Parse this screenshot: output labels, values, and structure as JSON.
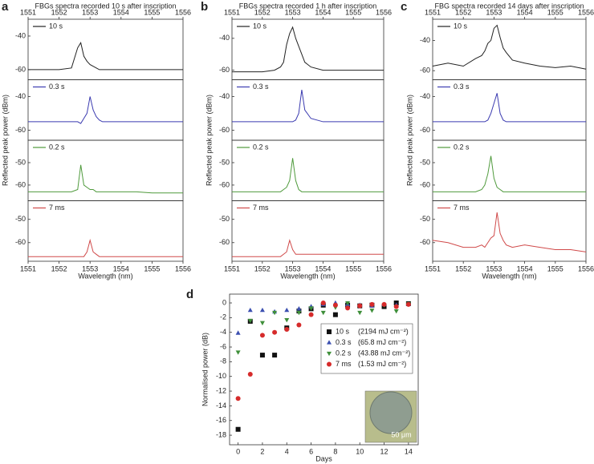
{
  "chart_data": [
    {
      "type": "line",
      "panel": "a",
      "title": "FBGs spectra recorded 10 s after inscription",
      "xlabel": "Wavelength (nm)",
      "ylabel": "Reflected peak power (dBm)",
      "xlim": [
        1551,
        1556
      ],
      "xticks": [
        1551,
        1552,
        1553,
        1554,
        1555,
        1556
      ],
      "x": [
        1551,
        1551.5,
        1552,
        1552.4,
        1552.6,
        1552.7,
        1552.8,
        1552.9,
        1553,
        1553.1,
        1553.2,
        1553.3,
        1553.4,
        1553.6,
        1554,
        1554.5,
        1555,
        1555.5,
        1556
      ],
      "subplots": [
        {
          "ylim": [
            -66,
            -30
          ],
          "yticks": [
            -60,
            -40
          ],
          "series": [
            {
              "name": "10 s",
              "color": "#222222",
              "values": [
                -60,
                -60,
                -60,
                -59,
                -47,
                -44,
                -52,
                -55,
                -57,
                -58,
                -59,
                -60,
                -60,
                -60,
                -60,
                -60,
                -60,
                -60,
                -60
              ]
            }
          ]
        },
        {
          "ylim": [
            -66,
            -30
          ],
          "yticks": [
            -60,
            -40
          ],
          "series": [
            {
              "name": "0.3 s",
              "color": "#3b3bb0",
              "values": [
                -55,
                -55,
                -55,
                -55,
                -55,
                -56,
                -53,
                -50,
                -40,
                -48,
                -52,
                -54,
                -55,
                -55,
                -55,
                -55,
                -55,
                -55,
                -55
              ]
            }
          ]
        },
        {
          "ylim": [
            -67,
            -40
          ],
          "yticks": [
            -60,
            -50
          ],
          "series": [
            {
              "name": "0.2 s",
              "color": "#4f9a3c",
              "values": [
                -63,
                -63,
                -63,
                -63,
                -62,
                -51,
                -60,
                -61,
                -62,
                -62,
                -63,
                -63,
                -63,
                -63,
                -63,
                -63,
                -63.5,
                -63.5,
                -63.5
              ]
            }
          ]
        },
        {
          "ylim": [
            -68,
            -42
          ],
          "yticks": [
            -60,
            -50
          ],
          "series": [
            {
              "name": "7 ms",
              "color": "#d04a4a",
              "values": [
                -66,
                -66,
                -66,
                -66,
                -66,
                -66,
                -66,
                -64,
                -59,
                -64,
                -65,
                -66,
                -66,
                -66,
                -66,
                -66,
                -66,
                -66,
                -66
              ]
            }
          ]
        }
      ]
    },
    {
      "type": "line",
      "panel": "b",
      "title": "FBGs spectra recorded 1 h after inscription",
      "xlabel": "Wavelength (nm)",
      "ylabel": "Reflected peak power (dBm)",
      "xlim": [
        1551,
        1556
      ],
      "xticks": [
        1551,
        1552,
        1553,
        1554,
        1555,
        1556
      ],
      "x": [
        1551,
        1551.5,
        1552,
        1552.4,
        1552.6,
        1552.7,
        1552.8,
        1552.9,
        1553,
        1553.1,
        1553.2,
        1553.3,
        1553.4,
        1553.6,
        1554,
        1554.5,
        1555,
        1555.5,
        1556
      ],
      "subplots": [
        {
          "ylim": [
            -66,
            -28
          ],
          "yticks": [
            -60,
            -40
          ],
          "series": [
            {
              "name": "10 s",
              "color": "#222222",
              "values": [
                -61,
                -61,
                -61,
                -60,
                -58,
                -55,
                -44,
                -37,
                -33,
                -40,
                -45,
                -50,
                -55,
                -58,
                -60,
                -60,
                -60,
                -60,
                -60
              ]
            }
          ]
        },
        {
          "ylim": [
            -66,
            -30
          ],
          "yticks": [
            -60,
            -40
          ],
          "series": [
            {
              "name": "0.3 s",
              "color": "#3b3bb0",
              "values": [
                -55,
                -55,
                -55,
                -55,
                -55,
                -55,
                -55,
                -55,
                -55,
                -54,
                -50,
                -36,
                -48,
                -53,
                -55,
                -55,
                -55,
                -55,
                -55
              ]
            }
          ]
        },
        {
          "ylim": [
            -67,
            -40
          ],
          "yticks": [
            -60,
            -50
          ],
          "series": [
            {
              "name": "0.2 s",
              "color": "#4f9a3c",
              "values": [
                -63,
                -63,
                -63,
                -63,
                -63,
                -62,
                -61,
                -58,
                -48,
                -58,
                -62,
                -63,
                -63,
                -63,
                -63,
                -63,
                -63,
                -63,
                -63
              ]
            }
          ]
        },
        {
          "ylim": [
            -68,
            -42
          ],
          "yticks": [
            -60,
            -50
          ],
          "series": [
            {
              "name": "7 ms",
              "color": "#d04a4a",
              "values": [
                -66,
                -66,
                -66,
                -66,
                -66,
                -65,
                -64,
                -59,
                -63,
                -65,
                -65,
                -65,
                -65,
                -65,
                -65,
                -65,
                -65,
                -65,
                -65
              ]
            }
          ]
        }
      ]
    },
    {
      "type": "line",
      "panel": "c",
      "title": "FBG spectra recorded 14 days after inscription",
      "xlabel": "Wavelength (nm)",
      "ylabel": "Reflected peak power (dBm)",
      "xlim": [
        1551,
        1556
      ],
      "xticks": [
        1551,
        1552,
        1553,
        1554,
        1555,
        1556
      ],
      "x": [
        1551,
        1551.5,
        1552,
        1552.4,
        1552.6,
        1552.7,
        1552.8,
        1552.9,
        1553,
        1553.1,
        1553.2,
        1553.3,
        1553.4,
        1553.6,
        1554,
        1554.5,
        1555,
        1555.5,
        1556
      ],
      "subplots": [
        {
          "ylim": [
            -66,
            -26
          ],
          "yticks": [
            -60,
            -40
          ],
          "series": [
            {
              "name": "10 s",
              "color": "#222222",
              "values": [
                -57,
                -55,
                -57,
                -52,
                -50,
                -47,
                -42,
                -40,
                -32,
                -30,
                -38,
                -45,
                -48,
                -53,
                -55,
                -57,
                -58,
                -57,
                -59
              ]
            }
          ]
        },
        {
          "ylim": [
            -66,
            -30
          ],
          "yticks": [
            -60,
            -40
          ],
          "series": [
            {
              "name": "0.3 s",
              "color": "#3b3bb0",
              "values": [
                -55,
                -55,
                -55,
                -55,
                -55,
                -55,
                -54,
                -50,
                -44,
                -38,
                -50,
                -54,
                -55,
                -55,
                -55,
                -55,
                -55,
                -55,
                -55
              ]
            }
          ]
        },
        {
          "ylim": [
            -67,
            -40
          ],
          "yticks": [
            -60,
            -50
          ],
          "series": [
            {
              "name": "0.2 s",
              "color": "#4f9a3c",
              "values": [
                -63,
                -63,
                -63,
                -63,
                -62,
                -60,
                -55,
                -47,
                -57,
                -61,
                -62,
                -63,
                -63,
                -63,
                -63,
                -63,
                -63,
                -63,
                -63
              ]
            }
          ]
        },
        {
          "ylim": [
            -68,
            -42
          ],
          "yticks": [
            -60,
            -50
          ],
          "series": [
            {
              "name": "7 ms",
              "color": "#d04a4a",
              "values": [
                -59,
                -60,
                -62,
                -62,
                -61,
                -62,
                -60,
                -58,
                -57,
                -47,
                -56,
                -59,
                -61,
                -62,
                -61,
                -62,
                -63,
                -63,
                -64
              ]
            }
          ]
        }
      ]
    },
    {
      "type": "scatter",
      "panel": "d",
      "xlabel": "Days",
      "ylabel": "Normalised power (dB)",
      "xlim": [
        -0.7,
        14.8
      ],
      "xticks": [
        0,
        2,
        4,
        6,
        8,
        10,
        12,
        14
      ],
      "ylim": [
        -19.3,
        1.2
      ],
      "yticks": [
        0,
        -2,
        -4,
        -6,
        -8,
        -10,
        -12,
        -14,
        -16,
        -18
      ],
      "x": [
        0,
        1,
        2,
        3,
        4,
        5,
        6,
        7,
        8,
        9,
        10,
        11,
        12,
        13,
        14
      ],
      "series": [
        {
          "name": "10 s",
          "fluence": "(2194 mJ cm⁻²)",
          "color": "#111111",
          "marker": "square",
          "values": [
            -17.2,
            -2.5,
            -7.1,
            -7.1,
            -3.4,
            -1.1,
            -0.8,
            -0.3,
            -1.6,
            -0.3,
            -0.4,
            -0.3,
            -0.5,
            0,
            -0.1
          ]
        },
        {
          "name": "0.3 s",
          "fluence": "(65.8 mJ cm⁻²)",
          "color": "#3b4fb0",
          "marker": "triangle-up",
          "values": [
            -4.1,
            -1,
            -1,
            -1.2,
            -1,
            -0.8,
            -0.5,
            -0.2,
            0,
            -0.2,
            -0.3,
            -0.4,
            -0.2,
            -0.3,
            -0.2
          ]
        },
        {
          "name": "0.2 s",
          "fluence": "(43.88 mJ cm⁻²)",
          "color": "#3f8f3a",
          "marker": "triangle-down",
          "values": [
            -6.7,
            -2.4,
            -2.7,
            -1.3,
            -2.3,
            -1.3,
            -0.7,
            -1.3,
            -0.6,
            0,
            -1.3,
            -1,
            -0.3,
            -1.1,
            -0.1
          ]
        },
        {
          "name": "7 ms",
          "fluence": "(1.53 mJ cm⁻²)",
          "color": "#d62b2b",
          "marker": "circle",
          "values": [
            -13,
            -9.7,
            -4.4,
            -4,
            -3.6,
            -3,
            -1.6,
            0,
            -0.3,
            -0.7,
            -0.4,
            -0.2,
            -0.2,
            -0.5,
            -0.2
          ]
        }
      ],
      "inset_label": "50 μm"
    }
  ]
}
